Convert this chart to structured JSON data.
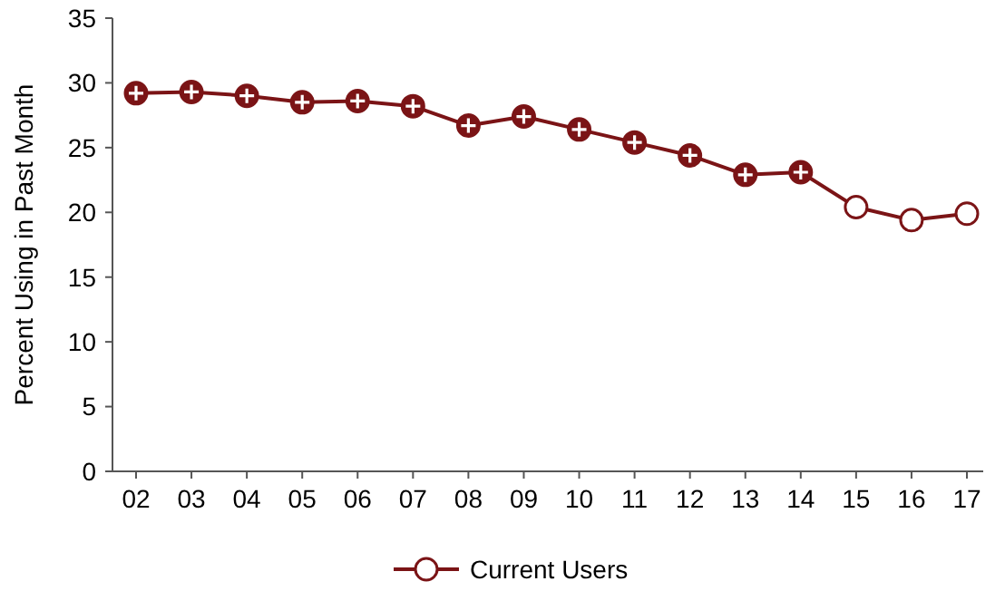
{
  "chart_data": {
    "type": "line",
    "ylabel": "Percent Using in Past Month",
    "categories": [
      "02",
      "03",
      "04",
      "05",
      "06",
      "07",
      "08",
      "09",
      "10",
      "11",
      "12",
      "13",
      "14",
      "15",
      "16",
      "17"
    ],
    "series": [
      {
        "name": "Current Users",
        "color": "#7b1416",
        "colors": [
          "#7b1416",
          "#7b1416",
          "#7b1416",
          "#7b1416",
          "#7b1416",
          "#7b1416",
          "#7b1416",
          "#7b1416",
          "#7b1416",
          "#7b1416",
          "#7b1416",
          "#7b1416",
          "#7b1416",
          "#ffffff",
          "#ffffff",
          "#ffffff"
        ],
        "values": [
          29.2,
          29.3,
          29.0,
          28.5,
          28.6,
          28.2,
          26.7,
          27.4,
          26.4,
          25.4,
          24.4,
          22.9,
          23.1,
          20.4,
          19.4,
          19.9
        ]
      }
    ],
    "marker": "circle",
    "ylim": [
      0,
      35
    ],
    "yticks": [
      0,
      5,
      10,
      15,
      20,
      25,
      30,
      35
    ],
    "grid": false,
    "legend": "bottom"
  }
}
